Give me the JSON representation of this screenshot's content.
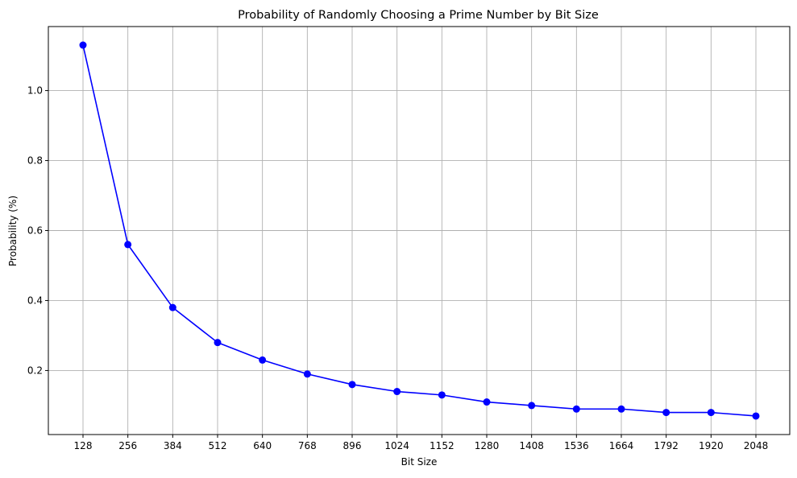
{
  "chart_data": {
    "type": "line",
    "title": "Probability of Randomly Choosing a Prime Number by Bit Size",
    "xlabel": "Bit Size",
    "ylabel": "Probability (%)",
    "categories": [
      "128",
      "256",
      "384",
      "512",
      "640",
      "768",
      "896",
      "1024",
      "1152",
      "1280",
      "1408",
      "1536",
      "1664",
      "1792",
      "1920",
      "2048"
    ],
    "series": [
      {
        "values": [
          1.13,
          0.56,
          0.38,
          0.28,
          0.23,
          0.19,
          0.16,
          0.14,
          0.13,
          0.11,
          0.1,
          0.09,
          0.09,
          0.08,
          0.08,
          0.07
        ],
        "color": "#0000ff",
        "marker": "circle"
      }
    ],
    "yticks": [
      "0.2",
      "0.4",
      "0.6",
      "0.8",
      "1.0"
    ],
    "ytick_values": [
      0.2,
      0.4,
      0.6,
      0.8,
      1.0
    ],
    "ylim": [
      0.017,
      1.183
    ],
    "grid": true,
    "grid_color": "#b0b0b0"
  }
}
